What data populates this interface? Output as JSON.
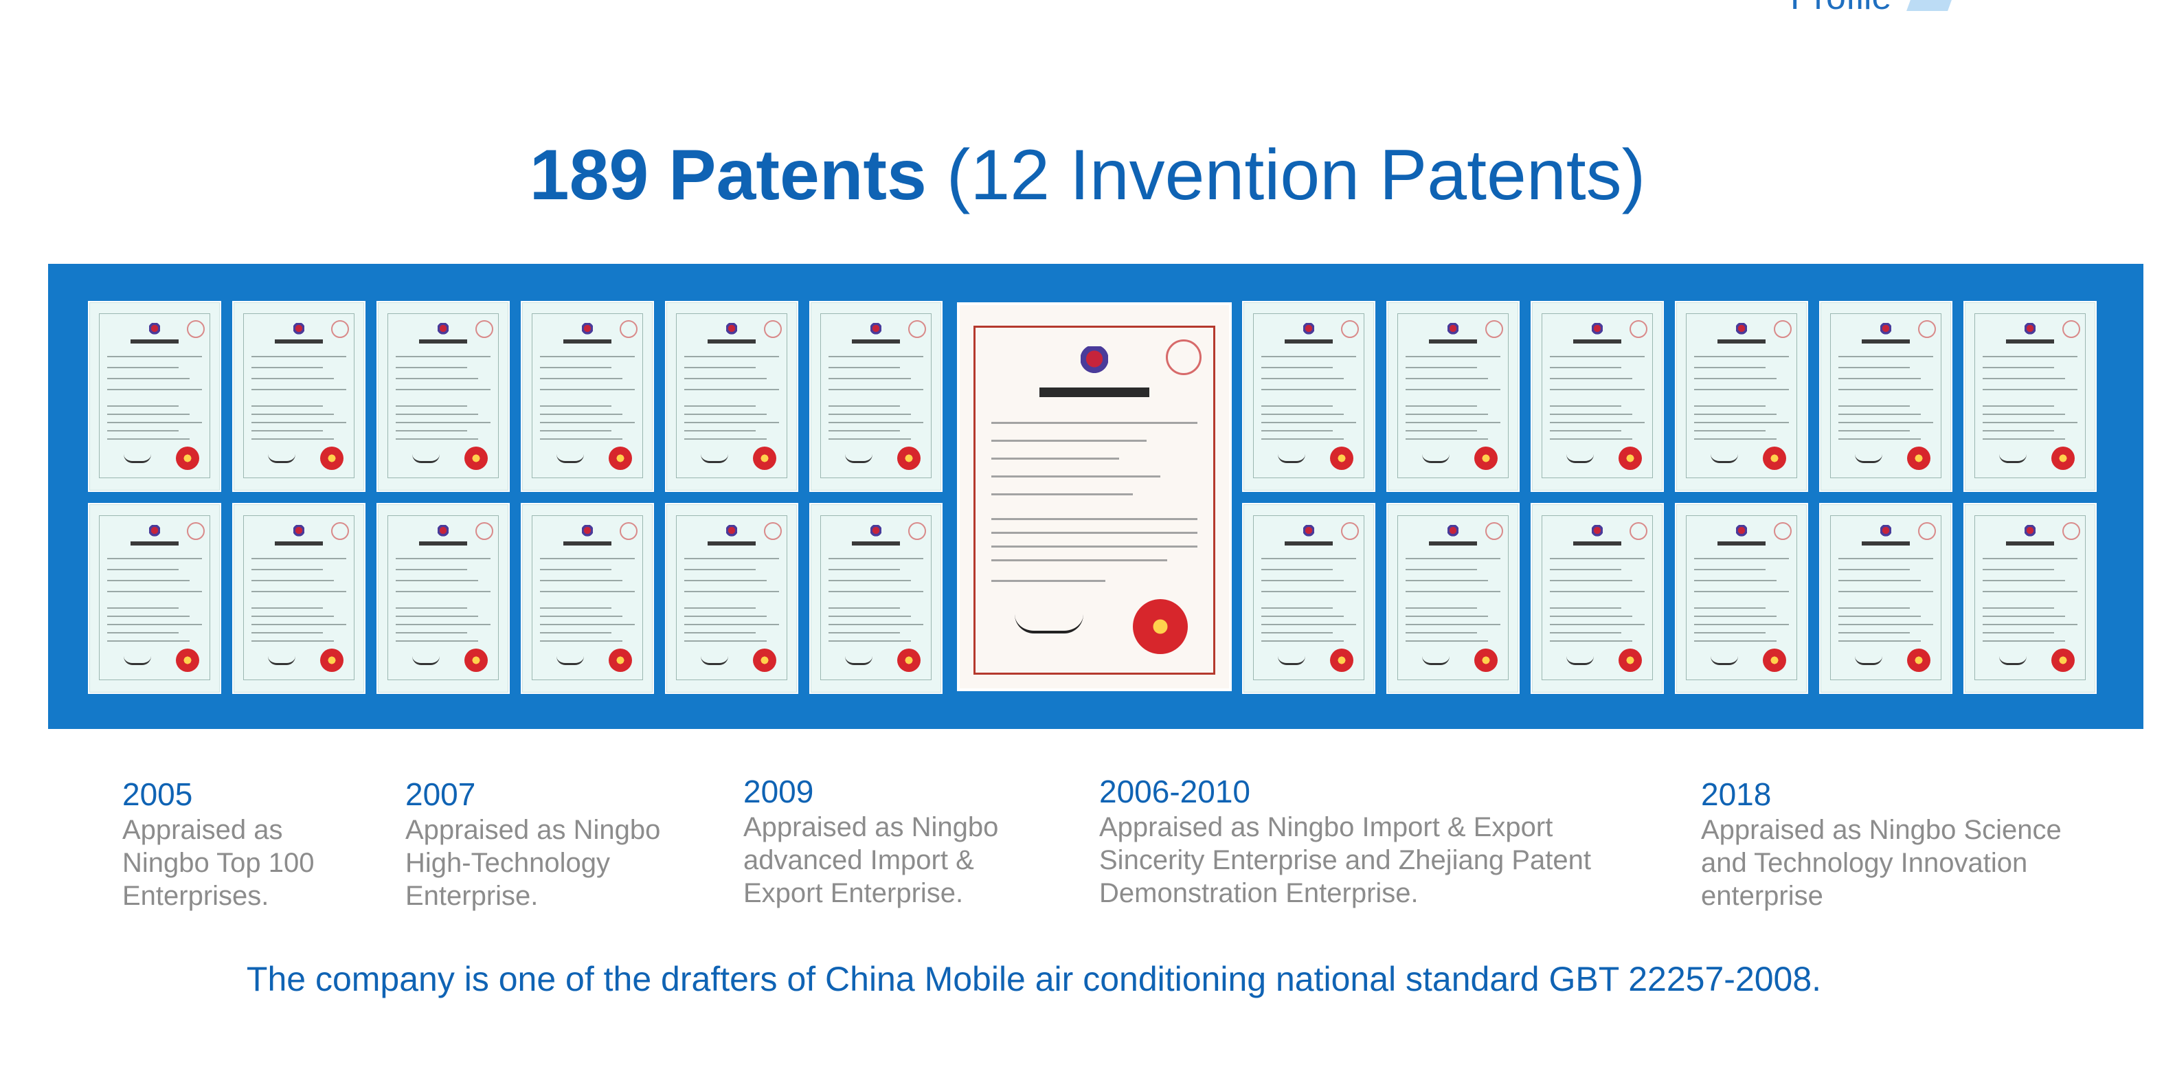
{
  "corner": {
    "text": "Profile"
  },
  "headline": {
    "bold": "189 Patents",
    "rest": "(12 Invention Patents)"
  },
  "milestones": [
    {
      "year": "2005",
      "lines": [
        "Appraised as",
        "Ningbo Top 100",
        "Enterprises."
      ]
    },
    {
      "year": "2007",
      "lines": [
        "Appraised as Ningbo",
        "High-Technology",
        "Enterprise."
      ]
    },
    {
      "year": "2009",
      "lines": [
        "Appraised as Ningbo",
        "advanced Import &",
        "Export Enterprise."
      ]
    },
    {
      "year": "2006-2010",
      "lines": [
        "Appraised as  Ningbo Import & Export",
        "Sincerity Enterprise and Zhejiang Patent",
        "Demonstration Enterprise."
      ]
    },
    {
      "year": "2018",
      "lines": [
        "Appraised as Ningbo Science",
        "and Technology Innovation",
        "enterprise"
      ]
    }
  ],
  "footer": {
    "text": "The company is one of the drafters of China Mobile air conditioning national standard GBT 22257-2008."
  },
  "colors": {
    "accent": "#0f63b4",
    "band": "#1479c9",
    "muted": "#8c8c8c"
  }
}
